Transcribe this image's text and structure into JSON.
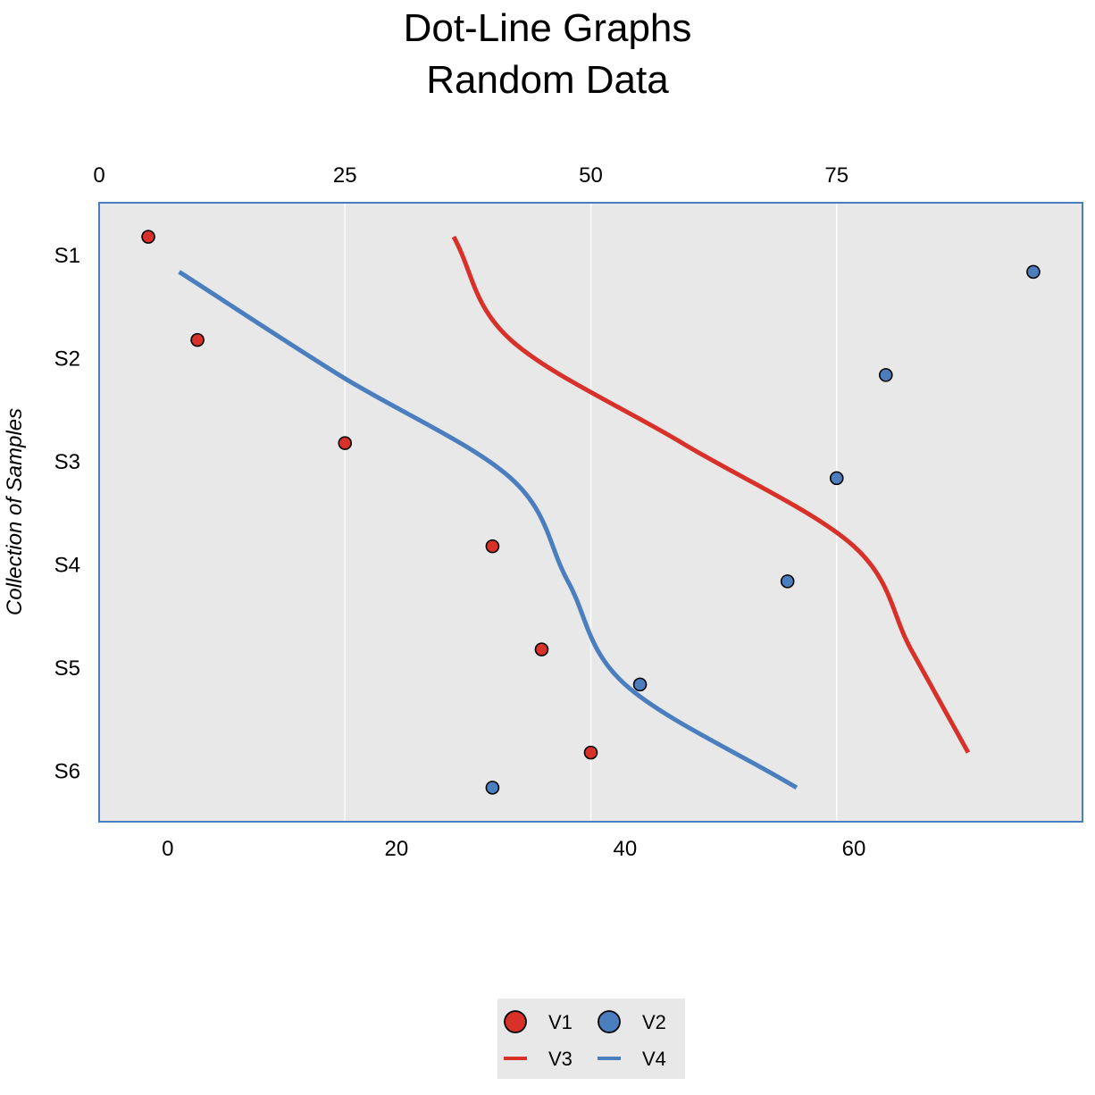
{
  "chart_data": {
    "type": "line",
    "title": "Dot-Line Graphs",
    "subtitle": "Random Data",
    "ylabel": "Collection of Samples",
    "categories": [
      "S1",
      "S2",
      "S3",
      "S4",
      "S5",
      "S6"
    ],
    "top_axis": {
      "ticks": [
        0,
        25,
        50,
        75
      ],
      "range": [
        0,
        100
      ]
    },
    "bottom_axis": {
      "ticks": [
        0,
        20,
        40,
        60
      ],
      "range": [
        -6,
        80
      ]
    },
    "grid": {
      "vertical": true,
      "horizontal": false
    },
    "background": "#e8e8e8",
    "border_color": "#4a7ebf",
    "legend_position": "bottom",
    "legend_items": [
      "V1",
      "V2",
      "V3",
      "V4"
    ],
    "dot_series": [
      {
        "name": "V1",
        "axis": "top",
        "color": "#d7312a",
        "offset": -0.17,
        "values": [
          5,
          10,
          25,
          40,
          45,
          50
        ]
      },
      {
        "name": "V2",
        "axis": "top",
        "color": "#4a7ebf",
        "offset": 0.17,
        "values": [
          95,
          80,
          75,
          70,
          55,
          40
        ]
      }
    ],
    "line_series": [
      {
        "name": "V3",
        "axis": "bottom",
        "color": "#d7312a",
        "offset": -0.17,
        "values": [
          25,
          30,
          45,
          60,
          65,
          70
        ]
      },
      {
        "name": "V4",
        "axis": "bottom",
        "color": "#4a7ebf",
        "offset": 0.17,
        "values": [
          1,
          15,
          30,
          35,
          40,
          55
        ]
      }
    ]
  }
}
